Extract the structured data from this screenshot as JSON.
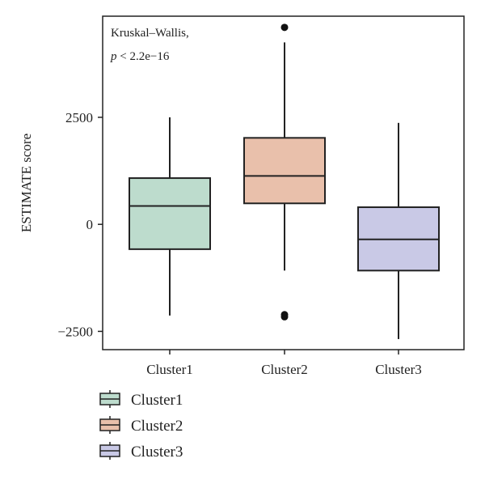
{
  "chart_data": {
    "type": "boxplot",
    "ylabel": "ESTIMATE score",
    "ylim": [
      -2700,
      4900
    ],
    "yticks": [
      -2500,
      0,
      2500
    ],
    "ytick_labels": [
      "−2500",
      "0",
      "2500"
    ],
    "categories": [
      "Cluster1",
      "Cluster2",
      "Cluster3"
    ],
    "annotation": {
      "line1": "Kruskal–Wallis,",
      "p_prefix": "p",
      "p_rest": " < 2.2e−16"
    },
    "series": [
      {
        "name": "Cluster1",
        "min": -2130,
        "q1": -580,
        "median": 430,
        "q3": 1080,
        "max": 2500,
        "outliers": [],
        "fill": "#bddccd"
      },
      {
        "name": "Cluster2",
        "min": -1080,
        "q1": 490,
        "median": 1130,
        "q3": 2020,
        "max": 4250,
        "outliers": [
          4600,
          -2110,
          -2160
        ],
        "fill": "#e9c0ab"
      },
      {
        "name": "Cluster3",
        "min": -2680,
        "q1": -1080,
        "median": -350,
        "q3": 400,
        "max": 2370,
        "outliers": [],
        "fill": "#c9c9e6"
      }
    ],
    "legend": {
      "placement": "bottom-left",
      "items": [
        "Cluster1",
        "Cluster2",
        "Cluster3"
      ]
    },
    "grid": false
  }
}
